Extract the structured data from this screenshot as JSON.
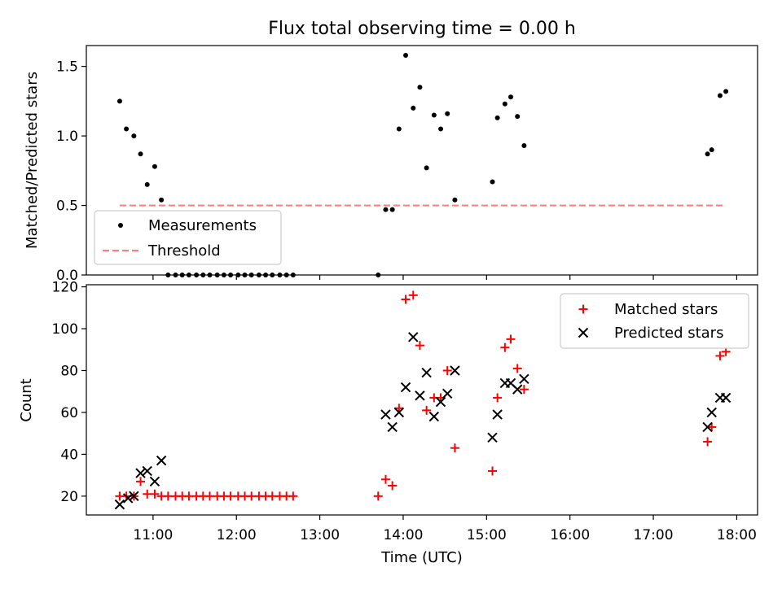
{
  "title": "Flux total observing time = 0.00 h",
  "chart_data": [
    {
      "type": "scatter",
      "panel": "top",
      "ylabel": "Matched/Predicted stars",
      "ylim": [
        0,
        1.65
      ],
      "yticks": [
        0.0,
        0.5,
        1.0,
        1.5
      ],
      "ytick_labels": [
        "0.0",
        "0.5",
        "1.0",
        "1.5"
      ],
      "grid": false,
      "legend_position": "lower-left",
      "series": [
        {
          "name": "Measurements",
          "color": "#000000",
          "points": [
            [
              10.6,
              1.25
            ],
            [
              10.68,
              1.05
            ],
            [
              10.77,
              1.0
            ],
            [
              10.85,
              0.87
            ],
            [
              10.93,
              0.65
            ],
            [
              11.02,
              0.78
            ],
            [
              11.1,
              0.54
            ],
            [
              11.18,
              0.0
            ],
            [
              11.27,
              0.0
            ],
            [
              11.35,
              0.0
            ],
            [
              11.43,
              0.0
            ],
            [
              11.52,
              0.0
            ],
            [
              11.6,
              0.0
            ],
            [
              11.68,
              0.0
            ],
            [
              11.77,
              0.0
            ],
            [
              11.85,
              0.0
            ],
            [
              11.93,
              0.0
            ],
            [
              12.02,
              0.0
            ],
            [
              12.1,
              0.0
            ],
            [
              12.18,
              0.0
            ],
            [
              12.27,
              0.0
            ],
            [
              12.35,
              0.0
            ],
            [
              12.43,
              0.0
            ],
            [
              12.52,
              0.0
            ],
            [
              12.6,
              0.0
            ],
            [
              12.68,
              0.0
            ],
            [
              13.7,
              0.0
            ],
            [
              13.79,
              0.47
            ],
            [
              13.87,
              0.47
            ],
            [
              13.95,
              1.05
            ],
            [
              14.03,
              1.58
            ],
            [
              14.12,
              1.2
            ],
            [
              14.2,
              1.35
            ],
            [
              14.28,
              0.77
            ],
            [
              14.37,
              1.15
            ],
            [
              14.45,
              1.05
            ],
            [
              14.53,
              1.16
            ],
            [
              14.62,
              0.54
            ],
            [
              15.07,
              0.67
            ],
            [
              15.13,
              1.13
            ],
            [
              15.22,
              1.23
            ],
            [
              15.29,
              1.28
            ],
            [
              15.37,
              1.14
            ],
            [
              15.45,
              0.93
            ],
            [
              17.65,
              0.87
            ],
            [
              17.7,
              0.9
            ],
            [
              17.8,
              1.29
            ],
            [
              17.87,
              1.32
            ]
          ]
        },
        {
          "name": "Threshold",
          "color": "#ff7f7f",
          "style": "dashed",
          "points": [
            [
              10.6,
              0.5
            ],
            [
              17.87,
              0.5
            ]
          ]
        }
      ]
    },
    {
      "type": "scatter",
      "panel": "bottom",
      "xlabel": "Time (UTC)",
      "ylabel": "Count",
      "xlim": [
        10.2,
        18.25
      ],
      "ylim": [
        11,
        121
      ],
      "xticks": [
        11,
        12,
        13,
        14,
        15,
        16,
        17,
        18
      ],
      "xtick_labels": [
        "11:00",
        "12:00",
        "13:00",
        "14:00",
        "15:00",
        "16:00",
        "17:00",
        "18:00"
      ],
      "yticks": [
        20,
        40,
        60,
        80,
        100,
        120
      ],
      "ytick_labels": [
        "20",
        "40",
        "60",
        "80",
        "100",
        "120"
      ],
      "grid": false,
      "legend_position": "top-right",
      "series": [
        {
          "name": "Matched stars",
          "marker": "plus",
          "color": "#ff0000",
          "points": [
            [
              10.6,
              20
            ],
            [
              10.68,
              20
            ],
            [
              10.77,
              20
            ],
            [
              10.85,
              27
            ],
            [
              10.93,
              21
            ],
            [
              11.02,
              21
            ],
            [
              11.1,
              20
            ],
            [
              11.18,
              20
            ],
            [
              11.27,
              20
            ],
            [
              11.35,
              20
            ],
            [
              11.43,
              20
            ],
            [
              11.52,
              20
            ],
            [
              11.6,
              20
            ],
            [
              11.68,
              20
            ],
            [
              11.77,
              20
            ],
            [
              11.85,
              20
            ],
            [
              11.93,
              20
            ],
            [
              12.02,
              20
            ],
            [
              12.1,
              20
            ],
            [
              12.18,
              20
            ],
            [
              12.27,
              20
            ],
            [
              12.35,
              20
            ],
            [
              12.43,
              20
            ],
            [
              12.52,
              20
            ],
            [
              12.6,
              20
            ],
            [
              12.68,
              20
            ],
            [
              13.7,
              20
            ],
            [
              13.79,
              28
            ],
            [
              13.87,
              25
            ],
            [
              13.95,
              62
            ],
            [
              14.03,
              114
            ],
            [
              14.12,
              116
            ],
            [
              14.2,
              92
            ],
            [
              14.28,
              61
            ],
            [
              14.37,
              67
            ],
            [
              14.45,
              67
            ],
            [
              14.53,
              80
            ],
            [
              14.62,
              43
            ],
            [
              15.07,
              32
            ],
            [
              15.13,
              67
            ],
            [
              15.22,
              91
            ],
            [
              15.29,
              95
            ],
            [
              15.37,
              81
            ],
            [
              15.45,
              71
            ],
            [
              17.65,
              46
            ],
            [
              17.7,
              53
            ],
            [
              17.8,
              87
            ],
            [
              17.87,
              89
            ]
          ]
        },
        {
          "name": "Predicted stars",
          "marker": "x",
          "color": "#000000",
          "points": [
            [
              10.6,
              16
            ],
            [
              10.7,
              19
            ],
            [
              10.77,
              20
            ],
            [
              10.85,
              31
            ],
            [
              10.93,
              32
            ],
            [
              11.02,
              27
            ],
            [
              11.1,
              37
            ],
            [
              13.79,
              59
            ],
            [
              13.87,
              53
            ],
            [
              13.95,
              60
            ],
            [
              14.03,
              72
            ],
            [
              14.12,
              96
            ],
            [
              14.2,
              68
            ],
            [
              14.28,
              79
            ],
            [
              14.37,
              58
            ],
            [
              14.45,
              65
            ],
            [
              14.53,
              69
            ],
            [
              14.62,
              80
            ],
            [
              15.07,
              48
            ],
            [
              15.13,
              59
            ],
            [
              15.22,
              74
            ],
            [
              15.29,
              74
            ],
            [
              15.37,
              71
            ],
            [
              15.45,
              76
            ],
            [
              17.65,
              53
            ],
            [
              17.7,
              60
            ],
            [
              17.8,
              67
            ],
            [
              17.87,
              67
            ]
          ]
        }
      ]
    }
  ]
}
